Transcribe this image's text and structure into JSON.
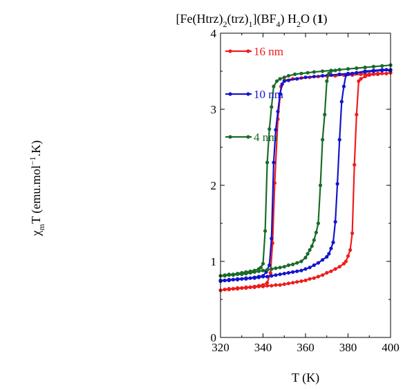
{
  "chart_data": {
    "type": "line",
    "title": "[Fe(Htrz)2(trz)1](BF4) H2O (1)",
    "title_parts": {
      "a": "[Fe(Htrz)",
      "sub1": "2",
      "b": "(trz)",
      "sub2": "1",
      "c": "](BF",
      "sub3": "4",
      "d": ") H",
      "sub4": "2",
      "e": "O (",
      "bold": "1",
      "f": ")"
    },
    "xlabel": "T (K)",
    "ylabel_parts": {
      "chi": "χ",
      "sub": "m",
      "mid": "T (emu.mol",
      "sup": "−1",
      "end": ".K)"
    },
    "xlim": [
      320,
      400
    ],
    "ylim": [
      0,
      4
    ],
    "xticks": [
      "320",
      "340",
      "360",
      "380",
      "400"
    ],
    "yticks": [
      "0",
      "1",
      "2",
      "3",
      "4"
    ],
    "grid": false,
    "legend_position": "top-left",
    "series": [
      {
        "name": "16 nm",
        "color": "#ee1c1c",
        "x": [
          320,
          322,
          324,
          326,
          328,
          330,
          332,
          334,
          336,
          338,
          340,
          342,
          343.5,
          344.5,
          345.5,
          347,
          348.5,
          350,
          354,
          358,
          362,
          366,
          370,
          374,
          378,
          382,
          386,
          390,
          394,
          398,
          400,
          400,
          398,
          396,
          394,
          392,
          390,
          388,
          386,
          385,
          384,
          383,
          382,
          381,
          380,
          379,
          378,
          376,
          374,
          372,
          370,
          368,
          366,
          364,
          362,
          360,
          358,
          356,
          354,
          352,
          350,
          348,
          346,
          344,
          342,
          340,
          338,
          336,
          334,
          332,
          330,
          328,
          326,
          324,
          322,
          320
        ],
        "y": [
          0.62,
          0.63,
          0.64,
          0.64,
          0.65,
          0.65,
          0.66,
          0.66,
          0.67,
          0.68,
          0.69,
          0.72,
          0.85,
          1.24,
          2.03,
          2.87,
          3.3,
          3.38,
          3.4,
          3.41,
          3.42,
          3.43,
          3.44,
          3.44,
          3.45,
          3.45,
          3.46,
          3.46,
          3.47,
          3.47,
          3.48,
          3.48,
          3.47,
          3.47,
          3.46,
          3.46,
          3.45,
          3.43,
          3.4,
          3.37,
          2.93,
          2.27,
          1.37,
          1.15,
          1.07,
          1.0,
          0.97,
          0.93,
          0.9,
          0.87,
          0.85,
          0.82,
          0.8,
          0.78,
          0.77,
          0.75,
          0.74,
          0.73,
          0.72,
          0.71,
          0.7,
          0.69,
          0.69,
          0.68,
          0.68,
          0.67,
          0.67,
          0.66,
          0.66,
          0.65,
          0.65,
          0.64,
          0.64,
          0.63,
          0.63,
          0.62
        ]
      },
      {
        "name": "10 nm",
        "color": "#1414cc",
        "x": [
          320,
          322,
          324,
          326,
          328,
          330,
          332,
          334,
          336,
          338,
          340,
          341.5,
          343,
          344,
          345,
          346,
          347,
          348,
          349,
          350,
          352,
          356,
          360,
          364,
          368,
          372,
          376,
          380,
          384,
          388,
          392,
          396,
          400,
          400,
          398,
          396,
          392,
          388,
          384,
          382,
          380,
          379,
          378,
          377,
          376,
          375,
          374,
          373,
          372,
          371,
          370,
          368,
          366,
          364,
          362,
          360,
          358,
          356,
          354,
          352,
          350,
          348,
          346,
          344,
          342,
          340,
          338,
          336,
          334,
          332,
          330,
          328,
          326,
          324,
          322,
          320
        ],
        "y": [
          0.75,
          0.75,
          0.76,
          0.76,
          0.77,
          0.77,
          0.78,
          0.78,
          0.79,
          0.8,
          0.81,
          0.86,
          0.95,
          1.3,
          2.3,
          2.73,
          2.97,
          3.2,
          3.33,
          3.37,
          3.38,
          3.4,
          3.42,
          3.43,
          3.44,
          3.45,
          3.46,
          3.47,
          3.48,
          3.49,
          3.5,
          3.51,
          3.51,
          3.52,
          3.52,
          3.52,
          3.51,
          3.5,
          3.48,
          3.47,
          3.46,
          3.45,
          3.3,
          3.1,
          2.6,
          2.02,
          1.52,
          1.25,
          1.17,
          1.1,
          1.06,
          1.02,
          0.98,
          0.95,
          0.92,
          0.9,
          0.88,
          0.87,
          0.86,
          0.85,
          0.84,
          0.83,
          0.82,
          0.81,
          0.8,
          0.8,
          0.79,
          0.78,
          0.78,
          0.77,
          0.77,
          0.76,
          0.76,
          0.75,
          0.75,
          0.74
        ]
      },
      {
        "name": "4 nm",
        "color": "#1a6b2a",
        "x": [
          320,
          322,
          324,
          326,
          328,
          330,
          332,
          334,
          336,
          338,
          339,
          340,
          341,
          342,
          343,
          344,
          345,
          346.5,
          348,
          350,
          352,
          355,
          358,
          361,
          364,
          368,
          372,
          376,
          380,
          384,
          388,
          392,
          396,
          400,
          400,
          396,
          392,
          388,
          384,
          380,
          376,
          374,
          372,
          371,
          370,
          369,
          368,
          367,
          366,
          365,
          364,
          363,
          362,
          361,
          360,
          358,
          356,
          354,
          352,
          350,
          348,
          346,
          344,
          342,
          340,
          338,
          336,
          334,
          332,
          330,
          328,
          326,
          324,
          322,
          320
        ],
        "y": [
          0.81,
          0.82,
          0.83,
          0.83,
          0.84,
          0.85,
          0.86,
          0.87,
          0.88,
          0.9,
          0.92,
          0.97,
          1.4,
          2.3,
          2.74,
          3.03,
          3.3,
          3.37,
          3.4,
          3.42,
          3.44,
          3.46,
          3.47,
          3.48,
          3.49,
          3.5,
          3.51,
          3.52,
          3.53,
          3.54,
          3.55,
          3.56,
          3.57,
          3.58,
          3.58,
          3.57,
          3.56,
          3.55,
          3.54,
          3.53,
          3.52,
          3.51,
          3.5,
          3.47,
          3.37,
          2.93,
          2.6,
          2.0,
          1.5,
          1.38,
          1.28,
          1.2,
          1.15,
          1.1,
          1.05,
          1.0,
          0.98,
          0.96,
          0.95,
          0.93,
          0.92,
          0.91,
          0.9,
          0.89,
          0.88,
          0.87,
          0.86,
          0.85,
          0.84,
          0.83,
          0.83,
          0.82,
          0.82,
          0.81,
          0.81
        ]
      }
    ]
  }
}
